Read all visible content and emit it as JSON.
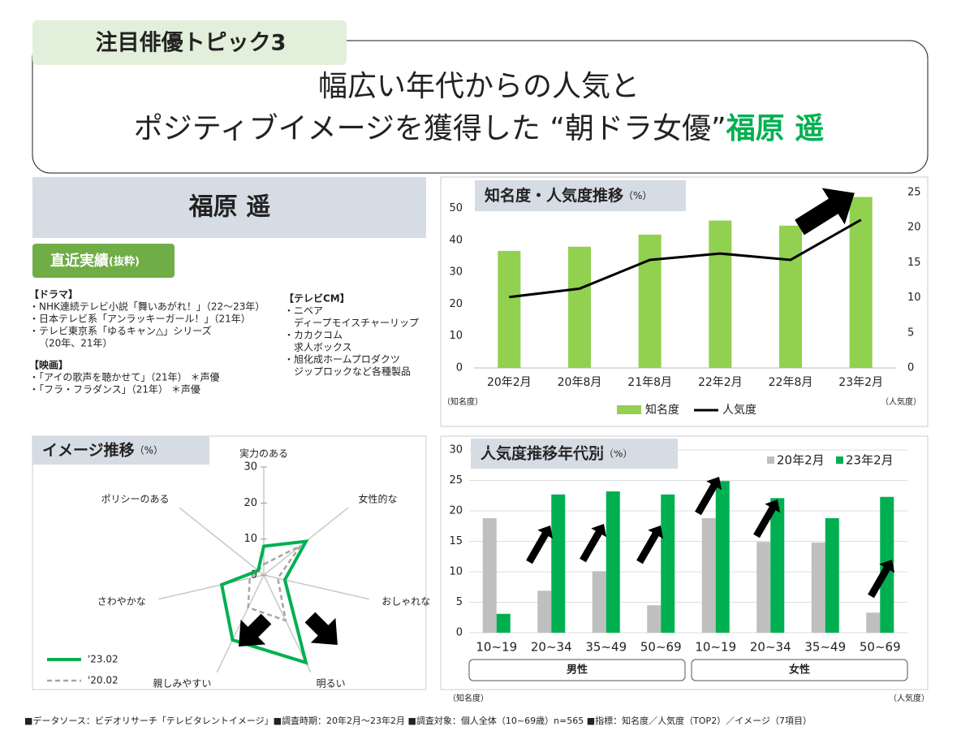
{
  "header": {
    "badge": "注目俳優トピック3",
    "title_line1": "幅広い年代からの人気と",
    "title_line2": "ポジティブイメージを獲得した “朝ドラ女優”",
    "title_name": "福原 遥"
  },
  "profile": {
    "name": "福原 遥",
    "section": "直近実績",
    "section_note": "(抜粋)",
    "works_left": [
      "【ドラマ】",
      "・NHK連続テレビ小説「舞いあがれ！」（22～23年）",
      "・日本テレビ系「アンラッキーガール！」（21年）",
      "・テレビ東京系「ゆるキャン△」シリーズ",
      "（20年、21年）",
      "【映画】",
      "・「アイの歌声を聴かせて」（21年） ＊声優",
      "・「フラ・フラダンス」（21年） ＊声優"
    ],
    "works_right": [
      "【テレビCM】",
      "・ニベア",
      "ディープモイスチャーリップ",
      "・カカクコム",
      "求人ボックス",
      "・旭化成ホームプロダクツ",
      "ジップロックなど各種製品"
    ]
  },
  "chart_data": [
    {
      "type": "bar_line",
      "title": "知名度・人気度推移",
      "unit": "（%）",
      "categories": [
        "20年2月",
        "20年8月",
        "21年8月",
        "22年2月",
        "22年8月",
        "23年2月"
      ],
      "series": [
        {
          "name": "知名度",
          "type": "bar",
          "color": "#92d050",
          "values": [
            36.7,
            38,
            41.8,
            46.2,
            44.6,
            53.6
          ]
        },
        {
          "name": "人気度",
          "type": "line",
          "axis": "y2",
          "color": "#000000",
          "values": [
            10.1,
            11.3,
            15.4,
            16.3,
            15.4,
            21.1
          ]
        }
      ],
      "ylim": [
        0,
        55
      ],
      "yticks": [
        0,
        10,
        20,
        30,
        40,
        50
      ],
      "y2lim": [
        0,
        25
      ],
      "y2ticks": [
        0,
        5,
        10,
        15,
        20,
        25
      ],
      "ylabel": "（知名度）",
      "y2label": "（人気度）",
      "grid": false,
      "legend": "bottom"
    },
    {
      "type": "radar",
      "title": "イメージ推移",
      "unit": "（%）",
      "categories": [
        "実力のある",
        "女性的な",
        "おしゃれな",
        "明るい",
        "親しみやすい",
        "さわやかな",
        "ポリシーのある"
      ],
      "series": [
        {
          "name": "'23.02",
          "color": "#00b050",
          "values": [
            8,
            15,
            6,
            27,
            20,
            12,
            2
          ]
        },
        {
          "name": "'20.02",
          "color": "#a6a6a6",
          "dashed": true,
          "values": [
            3,
            13,
            4,
            14,
            10,
            4,
            2
          ]
        }
      ],
      "rlim": [
        0,
        30
      ],
      "rticks": [
        0,
        10,
        20,
        30
      ],
      "legend": "bottom-left"
    },
    {
      "type": "bar",
      "title": "人気度推移年代別",
      "unit": "（%）",
      "categories": [
        "10~19",
        "20~34",
        "35~49",
        "50~69",
        "10~19",
        "20~34",
        "35~49",
        "50~69"
      ],
      "groups": [
        "男性",
        "女性"
      ],
      "series": [
        {
          "name": "20年2月",
          "color": "#bfbfbf",
          "values": [
            18.8,
            6.9,
            10.1,
            4.5,
            18.8,
            14.9,
            14.8,
            3.3
          ]
        },
        {
          "name": "23年2月",
          "color": "#00b050",
          "values": [
            3.1,
            22.7,
            23.2,
            22.7,
            24.9,
            22.1,
            18.8,
            22.3
          ]
        }
      ],
      "ylim": [
        0,
        30
      ],
      "yticks": [
        0,
        5,
        10,
        15,
        20,
        25,
        30
      ],
      "ylabel": "（知名度）",
      "y2label": "（人気度）",
      "grid": true,
      "legend": "top-right"
    }
  ],
  "footer": "■データソース：ビデオリサーチ「テレビタレントイメージ」■調査時期：20年2月～23年2月 ■調査対象：個人全体（10~69歳）n=565 ■指標：知名度／人気度（TOP2）／イメージ（7項目）"
}
